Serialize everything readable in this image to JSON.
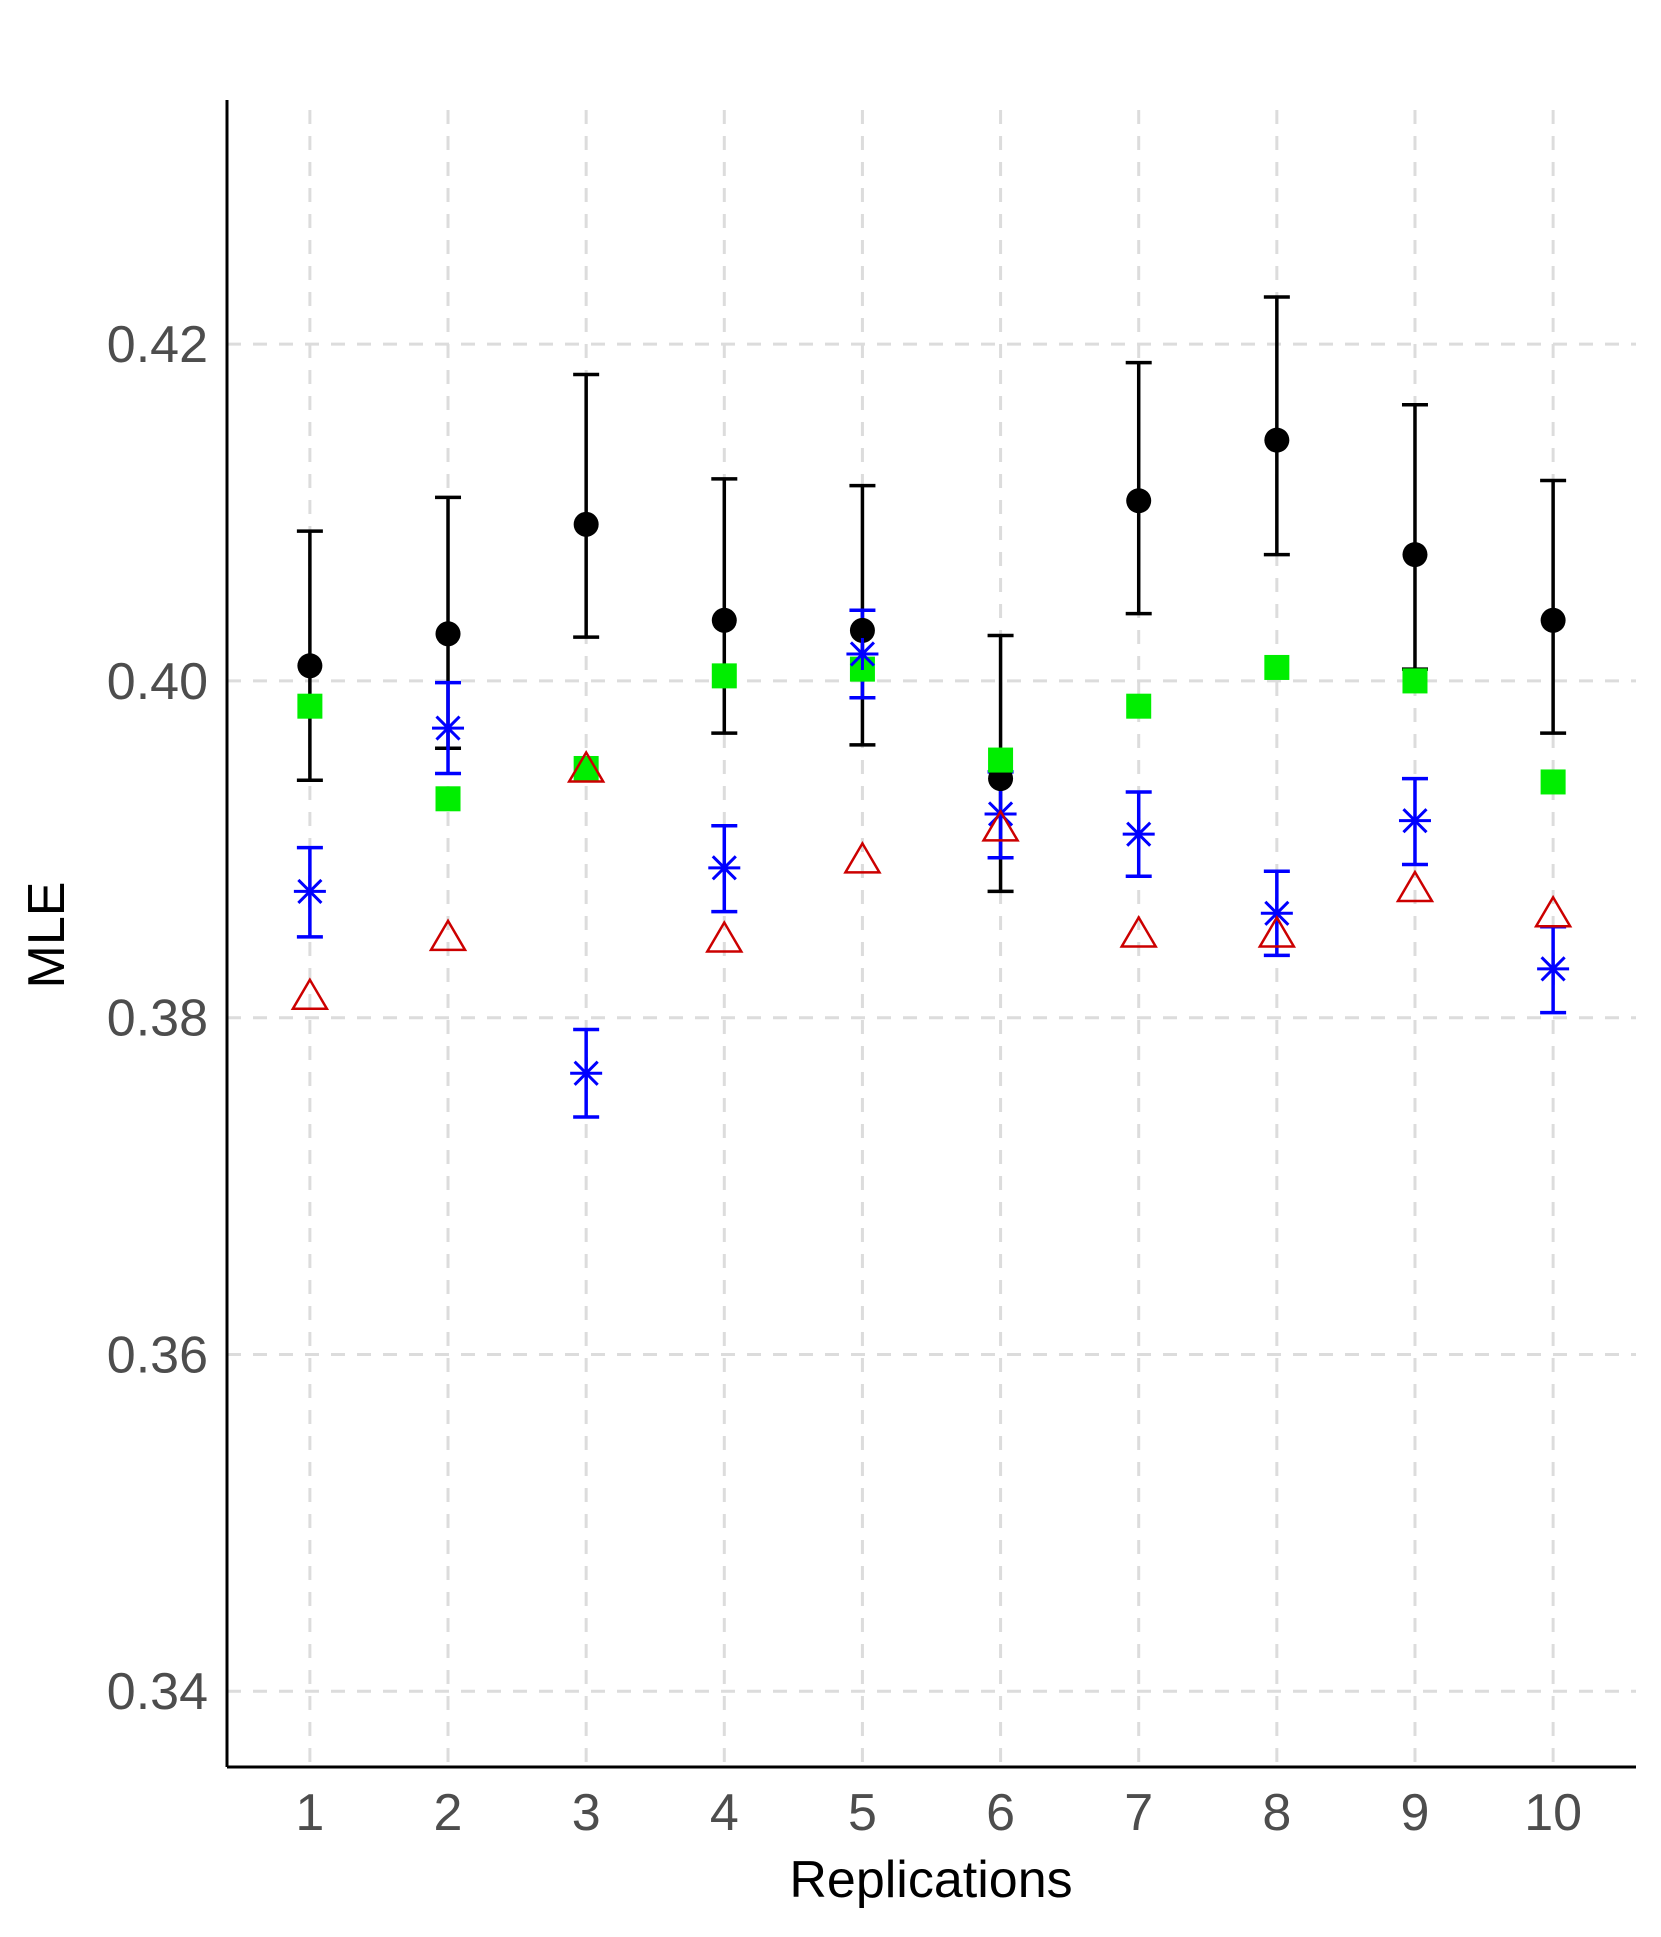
{
  "chart_data": {
    "type": "scatter",
    "title": "",
    "xlabel": "Replications",
    "ylabel": "MLE",
    "x": [
      1,
      2,
      3,
      4,
      5,
      6,
      7,
      8,
      9,
      10
    ],
    "x_tick_labels": [
      "1",
      "2",
      "3",
      "4",
      "5",
      "6",
      "7",
      "8",
      "9",
      "10"
    ],
    "y_ticks": [
      0.34,
      0.36,
      0.38,
      0.4,
      0.42
    ],
    "y_tick_labels": [
      "0.34",
      "0.36",
      "0.38",
      "0.40",
      "0.42"
    ],
    "xlim": [
      0.4,
      10.6
    ],
    "ylim": [
      0.3355,
      0.4345
    ],
    "grid": true,
    "legend": "none",
    "series": [
      {
        "marker": "circle",
        "color": "#000000",
        "values": [
          0.4009,
          0.4028,
          0.4093,
          0.4036,
          0.403,
          0.3942,
          0.4107,
          0.4143,
          0.4075,
          0.4036
        ],
        "err_low": [
          0.3941,
          0.396,
          0.4026,
          0.3969,
          0.3962,
          0.3875,
          0.404,
          0.4075,
          0.4007,
          0.3969
        ],
        "err_high": [
          0.4089,
          0.4109,
          0.4182,
          0.412,
          0.4116,
          0.4027,
          0.4189,
          0.4228,
          0.4164,
          0.4119
        ]
      },
      {
        "marker": "square",
        "color": "#00ee00",
        "values": [
          0.3985,
          0.393,
          0.3948,
          0.4003,
          0.4007,
          0.3953,
          0.3985,
          0.4008,
          0.4,
          0.394
        ]
      },
      {
        "marker": "asterisk",
        "color": "#0000ff",
        "values": [
          0.3875,
          0.3972,
          0.3767,
          0.3889,
          0.4016,
          0.3921,
          0.3909,
          0.3862,
          0.3917,
          0.3829
        ],
        "err_low": [
          0.3848,
          0.3945,
          0.3741,
          0.3863,
          0.399,
          0.3895,
          0.3884,
          0.3837,
          0.3891,
          0.3803
        ],
        "err_high": [
          0.3901,
          0.3999,
          0.3793,
          0.3914,
          0.4042,
          0.3946,
          0.3934,
          0.3887,
          0.3942,
          0.3854
        ]
      },
      {
        "marker": "triangle-open",
        "color": "#cc0000",
        "values": [
          0.3813,
          0.3848,
          0.3948,
          0.3847,
          0.3894,
          0.3913,
          0.385,
          0.385,
          0.3877,
          0.3862
        ]
      }
    ]
  }
}
